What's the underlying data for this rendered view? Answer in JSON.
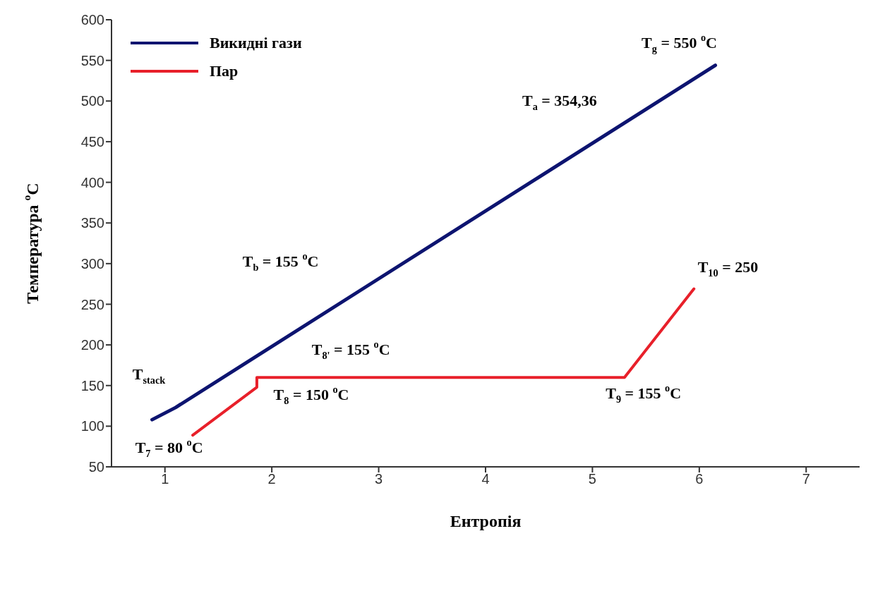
{
  "chart_data": {
    "type": "line",
    "xlabel": "Ентропія",
    "ylabel": "Температура $^{o}$C",
    "xlim": [
      0.5,
      7.5
    ],
    "xticks": [
      1,
      2,
      3,
      4,
      5,
      6,
      7
    ],
    "ylim": [
      50,
      600
    ],
    "yticks": [
      50,
      100,
      150,
      200,
      250,
      300,
      350,
      400,
      450,
      500,
      550,
      600
    ],
    "grid": false,
    "legend": "top left",
    "marker": "none",
    "line_style": "solid",
    "series": [
      {
        "name": "Викидні гази",
        "color": "#0d1470",
        "x": [
          0.88,
          1.1,
          6.15
        ],
        "values": [
          108,
          123,
          544
        ]
      },
      {
        "name": "Пар",
        "color": "#e8202a",
        "x": [
          1.26,
          1.86,
          1.86,
          5.3,
          5.95
        ],
        "values": [
          89,
          148,
          160,
          160,
          269
        ]
      }
    ],
    "annotations": [
      "T$_{g}$ = 550 $^{o}$C",
      "T$_{a}$ = 354,36",
      "T$_{b}$ = 155 $^{o}$C",
      "T$_{10}$ = 250",
      "T$_{8'}$ = 155 $^{o}$C",
      "T$_{stack}$",
      "T$_{8}$ = 150 $^{o}$C",
      "T$_{9}$ = 155 $^{o}$C",
      "T$_{7}$ = 80 $^{o}$C"
    ]
  }
}
